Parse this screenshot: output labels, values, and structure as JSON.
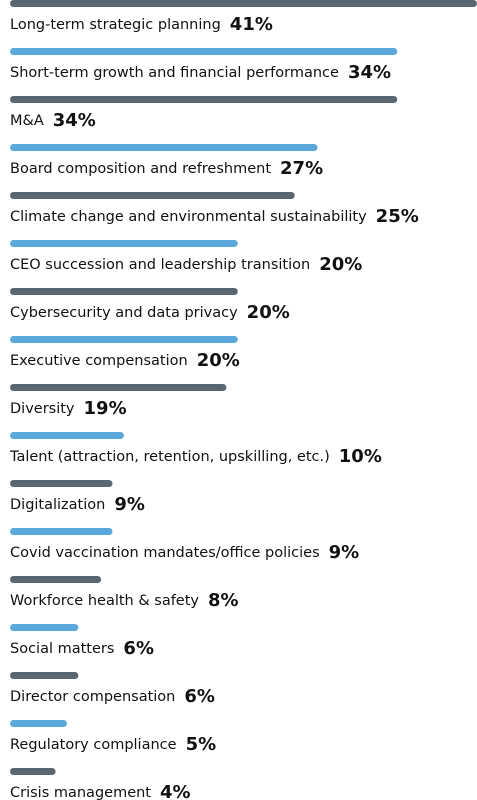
{
  "chart_data": {
    "type": "hbar",
    "categories": [
      "Long-term strategic planning",
      "Short-term growth and financial performance",
      "M&A",
      "Board composition and refreshment",
      "Climate change and environmental sustainability",
      "CEO succession and leadership transition",
      "Cybersecurity and data privacy",
      "Executive compensation",
      "Diversity",
      "Talent (attraction, retention, upskilling, etc.)",
      "Digitalization",
      "Covid vaccination mandates/office policies",
      "Workforce health & safety",
      "Social matters",
      "Director compensation",
      "Regulatory compliance",
      "Crisis management"
    ],
    "values": [
      41,
      34,
      34,
      27,
      25,
      20,
      20,
      20,
      19,
      10,
      9,
      9,
      8,
      6,
      6,
      5,
      4
    ],
    "value_labels": [
      "41%",
      "34%",
      "34%",
      "27%",
      "25%",
      "20%",
      "20%",
      "20%",
      "19%",
      "10%",
      "9%",
      "9%",
      "8%",
      "6%",
      "6%",
      "5%",
      "4%"
    ],
    "colors": [
      "#5a6670",
      "#5aa8da"
    ],
    "xlim": [
      0,
      41
    ]
  }
}
